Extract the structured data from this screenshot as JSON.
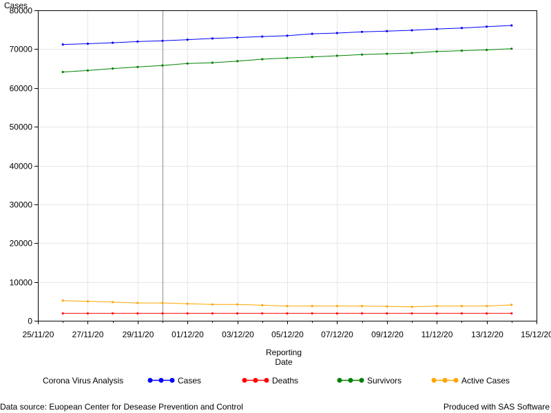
{
  "chart_data": {
    "type": "line",
    "ylabel": "Cases",
    "xlabel_lines": [
      "Reporting",
      "Date"
    ],
    "ylim": [
      0,
      80000
    ],
    "yticks": [
      0,
      10000,
      20000,
      30000,
      40000,
      50000,
      60000,
      70000,
      80000
    ],
    "xlim": [
      "2020-11-25",
      "2020-12-15"
    ],
    "xticks": [
      "25/11/20",
      "27/11/20",
      "29/11/20",
      "01/12/20",
      "03/12/20",
      "05/12/20",
      "07/12/20",
      "09/12/20",
      "11/12/20",
      "13/12/20",
      "15/12/20"
    ],
    "x": [
      "2020-11-26",
      "2020-11-27",
      "2020-11-28",
      "2020-11-29",
      "2020-11-30",
      "2020-12-01",
      "2020-12-02",
      "2020-12-03",
      "2020-12-04",
      "2020-12-05",
      "2020-12-06",
      "2020-12-07",
      "2020-12-08",
      "2020-12-09",
      "2020-12-10",
      "2020-12-11",
      "2020-12-12",
      "2020-12-13",
      "2020-12-14"
    ],
    "reference_line_x": "2020-11-30",
    "grid": true,
    "legend_position": "bottom",
    "legend_title": "Corona Virus Analysis",
    "series": [
      {
        "name": "Cases",
        "color": "#0000ff",
        "marker": "circle",
        "values": [
          71200,
          71400,
          71650,
          71950,
          72150,
          72450,
          72750,
          73000,
          73250,
          73450,
          73950,
          74150,
          74450,
          74650,
          74850,
          75200,
          75450,
          75800,
          76100
        ]
      },
      {
        "name": "Deaths",
        "color": "#ff0000",
        "marker": "circle",
        "values": [
          1900,
          1900,
          1900,
          1900,
          1900,
          1900,
          1900,
          1900,
          1900,
          1900,
          1900,
          1900,
          1900,
          1900,
          1900,
          1900,
          1900,
          1900,
          1900
        ]
      },
      {
        "name": "Survivors",
        "color": "#008000",
        "marker": "circle",
        "values": [
          64100,
          64500,
          65000,
          65400,
          65800,
          66300,
          66500,
          66900,
          67400,
          67700,
          68000,
          68300,
          68600,
          68800,
          69000,
          69400,
          69600,
          69800,
          70100
        ]
      },
      {
        "name": "Active Cases",
        "color": "#ffa500",
        "marker": "circle",
        "values": [
          5200,
          5000,
          4800,
          4600,
          4600,
          4400,
          4200,
          4200,
          4000,
          3800,
          3800,
          3800,
          3800,
          3700,
          3600,
          3800,
          3800,
          3800,
          4100
        ]
      }
    ]
  },
  "footer": {
    "source": "Data source: Euopean Center for Desease Prevention and Control",
    "produced": "Produced with SAS Software"
  }
}
